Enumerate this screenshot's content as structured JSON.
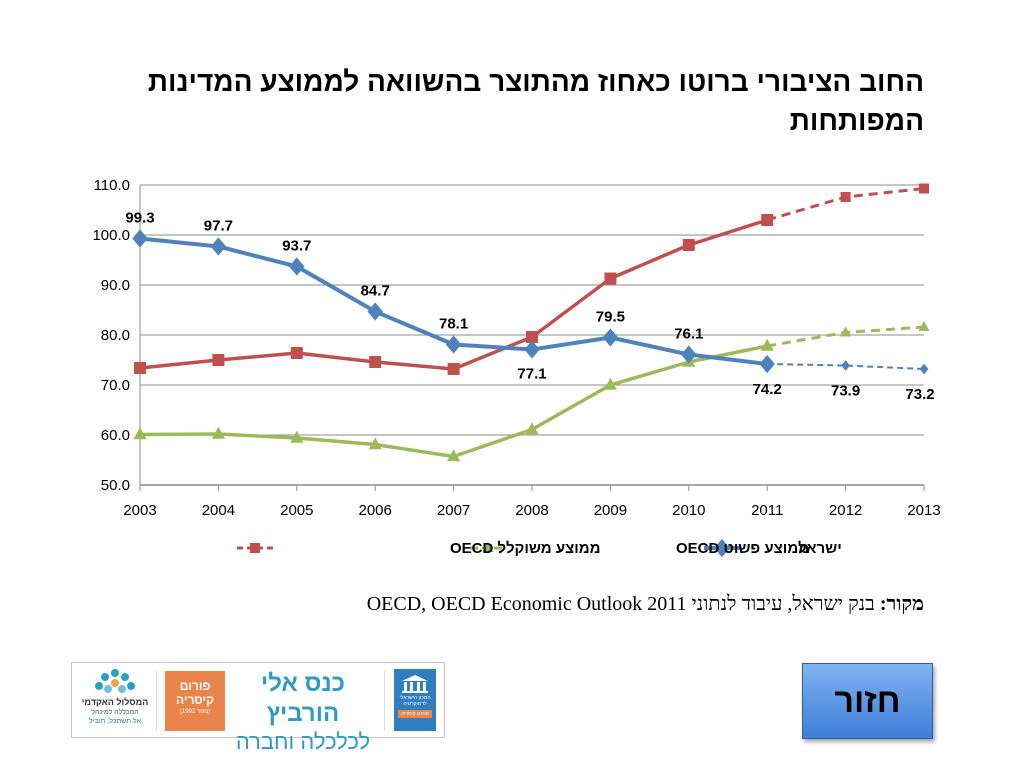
{
  "slide": {
    "title": "החוב הציבורי ברוטו כאחוז מהתוצר בהשוואה לממוצע המדינות המפותחות",
    "source_label": "מקור:",
    "source_text": " בנק ישראל, עיבוד לנתוני OECD, OECD Economic Outlook 2011",
    "back_button_label": "חזור"
  },
  "logos": {
    "left_line1": "המסלול האקדמי",
    "left_line2": "המכללה למינהל",
    "left_line3": "אל תשתכל, תוביל",
    "forum_line1": "פורום",
    "forum_line2": "קיסריה",
    "forum_line3": "(נוסד 1992)",
    "kenes_line1": "כנס אלי הורביץ",
    "kenes_line2": "לכלכלה וחברה",
    "inst_line1": "המכון הישראלי לדמוקרטיה",
    "inst_line2": "פורום קיסריה"
  },
  "chart_data": {
    "type": "line",
    "x": [
      2003,
      2004,
      2005,
      2006,
      2007,
      2008,
      2009,
      2010,
      2011,
      2012,
      2013
    ],
    "ylim": [
      50,
      110
    ],
    "yticks": [
      "50.0",
      "60.0",
      "70.0",
      "80.0",
      "90.0",
      "100.0",
      "110.0"
    ],
    "grid": true,
    "legend_position": "bottom",
    "series": [
      {
        "name": "ממוצע משוקלל OECD",
        "color": "#c0504d",
        "marker": "square",
        "values": [
          73.4,
          75.0,
          76.4,
          74.6,
          73.2,
          79.6,
          91.3,
          98.0,
          103.0,
          107.6,
          109.3
        ],
        "forecast_from_index": 8
      },
      {
        "name": "ממוצע פשוט OECD",
        "color": "#9bbb59",
        "marker": "triangle",
        "values": [
          60.1,
          60.2,
          59.4,
          58.1,
          55.7,
          61.1,
          70.0,
          74.6,
          77.8,
          80.5,
          81.6
        ],
        "forecast_from_index": 8
      },
      {
        "name": "ישראל",
        "color": "#4f81bd",
        "marker": "diamond",
        "values": [
          99.3,
          97.7,
          93.7,
          84.7,
          78.1,
          77.1,
          79.5,
          76.1,
          74.2,
          73.9,
          73.2
        ],
        "forecast_from_index": 8,
        "data_labels": [
          "99.3",
          "97.7",
          "93.7",
          "84.7",
          "78.1",
          "77.1",
          "79.5",
          "76.1",
          "74.2",
          "73.9",
          "73.2"
        ]
      }
    ]
  }
}
